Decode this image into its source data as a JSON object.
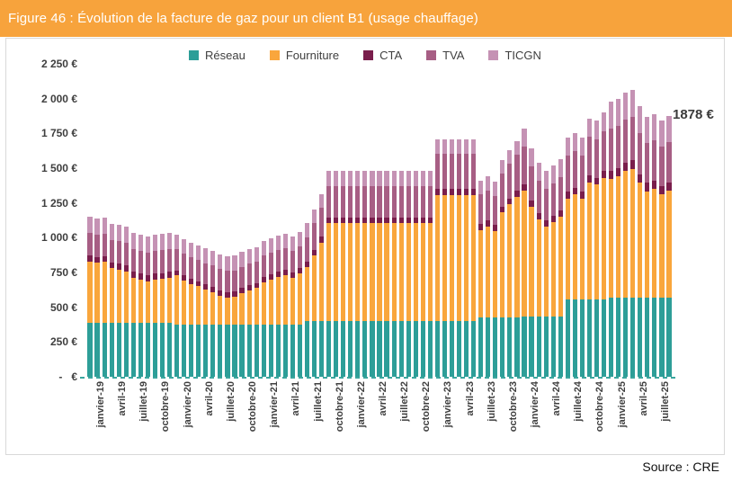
{
  "figure": {
    "title": "Figure 46 : Évolution de la facture de gaz pour un client B1 (usage chauffage)",
    "title_bar_color": "#F7A33C",
    "source": "Source : CRE"
  },
  "chart_data": {
    "type": "bar",
    "stacked": true,
    "unit": "€",
    "title": "Évolution de la facture de gaz pour un client B1 (usage chauffage)",
    "legend_position": "top",
    "grid": false,
    "x_tick_every": 3,
    "axis_dash_color": "#3ba69e",
    "categories": [
      "janvier-19",
      "février-19",
      "mars-19",
      "avril-19",
      "mai-19",
      "juin-19",
      "juillet-19",
      "août-19",
      "septembre-19",
      "octobre-19",
      "novembre-19",
      "décembre-19",
      "janvier-20",
      "février-20",
      "mars-20",
      "avril-20",
      "mai-20",
      "juin-20",
      "juillet-20",
      "août-20",
      "septembre-20",
      "octobre-20",
      "novembre-20",
      "décembre-20",
      "janvier-21",
      "février-21",
      "mars-21",
      "avril-21",
      "mai-21",
      "juin-21",
      "juillet-21",
      "août-21",
      "septembre-21",
      "octobre-21",
      "novembre-21",
      "décembre-21",
      "janvier-22",
      "février-22",
      "mars-22",
      "avril-22",
      "mai-22",
      "juin-22",
      "juillet-22",
      "août-22",
      "septembre-22",
      "octobre-22",
      "novembre-22",
      "décembre-22",
      "janvier-23",
      "février-23",
      "mars-23",
      "avril-23",
      "mai-23",
      "juin-23",
      "juillet-23",
      "août-23",
      "septembre-23",
      "octobre-23",
      "novembre-23",
      "décembre-23",
      "janvier-24",
      "février-24",
      "mars-24",
      "avril-24",
      "mai-24",
      "juin-24",
      "juillet-24",
      "août-24",
      "septembre-24",
      "octobre-24",
      "novembre-24",
      "décembre-24",
      "janvier-25",
      "février-25",
      "mars-25",
      "avril-25",
      "mai-25",
      "juin-25",
      "juillet-25",
      "août-25",
      "septembre-25"
    ],
    "series": [
      {
        "name": "Réseau",
        "color": "#2D9E98",
        "values": [
          390,
          390,
          390,
          390,
          390,
          390,
          390,
          390,
          390,
          390,
          390,
          390,
          375,
          375,
          375,
          375,
          375,
          375,
          375,
          375,
          375,
          375,
          375,
          375,
          372,
          372,
          372,
          372,
          372,
          372,
          400,
          400,
          400,
          400,
          400,
          400,
          400,
          400,
          400,
          400,
          400,
          400,
          400,
          400,
          400,
          400,
          400,
          400,
          400,
          400,
          400,
          400,
          400,
          400,
          430,
          430,
          430,
          430,
          430,
          430,
          435,
          435,
          435,
          435,
          435,
          435,
          553,
          553,
          553,
          553,
          553,
          553,
          570,
          570,
          570,
          570,
          570,
          570,
          570,
          570,
          570
        ]
      },
      {
        "name": "Fourniture",
        "color": "#F9A63C",
        "values": [
          440,
          430,
          435,
          390,
          382,
          369,
          324,
          311,
          298,
          311,
          317,
          324,
          353,
          320,
          294,
          275,
          255,
          236,
          210,
          197,
          203,
          229,
          249,
          262,
          307,
          327,
          346,
          359,
          340,
          372,
          390,
          473,
          566,
          707,
          707,
          707,
          707,
          707,
          707,
          707,
          707,
          707,
          707,
          707,
          707,
          707,
          707,
          707,
          908,
          908,
          908,
          908,
          908,
          908,
          625,
          650,
          618,
          751,
          810,
          866,
          906,
          785,
          696,
          647,
          680,
          718,
          729,
          757,
          729,
          845,
          829,
          878,
          854,
          871,
          909,
          926,
          827,
          765,
          781,
          742,
          770
        ]
      },
      {
        "name": "CTA",
        "color": "#7A1E4C",
        "values": [
          40,
          40,
          40,
          40,
          40,
          40,
          40,
          40,
          40,
          40,
          40,
          40,
          38,
          38,
          38,
          38,
          38,
          38,
          38,
          38,
          38,
          38,
          38,
          38,
          38,
          38,
          38,
          38,
          38,
          38,
          40,
          40,
          40,
          40,
          40,
          40,
          40,
          40,
          40,
          40,
          40,
          40,
          40,
          40,
          40,
          40,
          40,
          40,
          42,
          42,
          42,
          42,
          42,
          42,
          42,
          42,
          42,
          42,
          42,
          42,
          45,
          45,
          45,
          45,
          45,
          45,
          48,
          48,
          48,
          48,
          48,
          48,
          60,
          60,
          60,
          60,
          60,
          60,
          60,
          60,
          60
        ]
      },
      {
        "name": "TVA",
        "color": "#A75E84",
        "values": [
          165,
          165,
          165,
          165,
          165,
          165,
          165,
          165,
          165,
          165,
          165,
          165,
          150,
          150,
          150,
          150,
          150,
          150,
          150,
          150,
          150,
          150,
          150,
          150,
          158,
          158,
          158,
          158,
          158,
          158,
          175,
          190,
          207,
          225,
          225,
          225,
          225,
          225,
          225,
          225,
          225,
          225,
          225,
          225,
          225,
          225,
          225,
          225,
          255,
          255,
          255,
          255,
          255,
          255,
          215,
          218,
          213,
          237,
          248,
          258,
          272,
          250,
          234,
          225,
          231,
          238,
          262,
          267,
          262,
          283,
          280,
          289,
          300,
          303,
          310,
          313,
          295,
          285,
          287,
          281,
          286
        ]
      },
      {
        "name": "TICGN",
        "color": "#C592B4",
        "values": [
          115,
          115,
          115,
          115,
          115,
          115,
          115,
          115,
          115,
          115,
          115,
          115,
          105,
          105,
          105,
          105,
          105,
          105,
          105,
          105,
          105,
          105,
          105,
          105,
          100,
          100,
          100,
          100,
          100,
          100,
          100,
          100,
          100,
          110,
          110,
          110,
          110,
          110,
          110,
          110,
          110,
          110,
          110,
          110,
          110,
          110,
          110,
          110,
          105,
          105,
          105,
          105,
          105,
          105,
          100,
          100,
          100,
          100,
          100,
          100,
          130,
          130,
          130,
          130,
          130,
          130,
          130,
          130,
          130,
          130,
          130,
          130,
          192,
          192,
          192,
          192,
          192,
          192,
          192,
          192,
          192
        ]
      }
    ],
    "totals_note": "dernière barre (septembre-25) = 1878 €",
    "y_axis": {
      "min": 0,
      "max": 2250,
      "step": 250,
      "ticks": [
        {
          "value": 2250,
          "label": "2 250 €"
        },
        {
          "value": 2000,
          "label": "2 000 €"
        },
        {
          "value": 1750,
          "label": "1 750 €"
        },
        {
          "value": 1500,
          "label": "1 500 €"
        },
        {
          "value": 1250,
          "label": "1 250 €"
        },
        {
          "value": 1000,
          "label": "1 000 €"
        },
        {
          "value": 750,
          "label": "750 €"
        },
        {
          "value": 500,
          "label": "500 €"
        },
        {
          "value": 250,
          "label": "250 €"
        },
        {
          "value": 0,
          "label": "-   €"
        }
      ]
    },
    "annotation": {
      "text": "1878 €",
      "category": "septembre-25",
      "value": 1878
    }
  }
}
